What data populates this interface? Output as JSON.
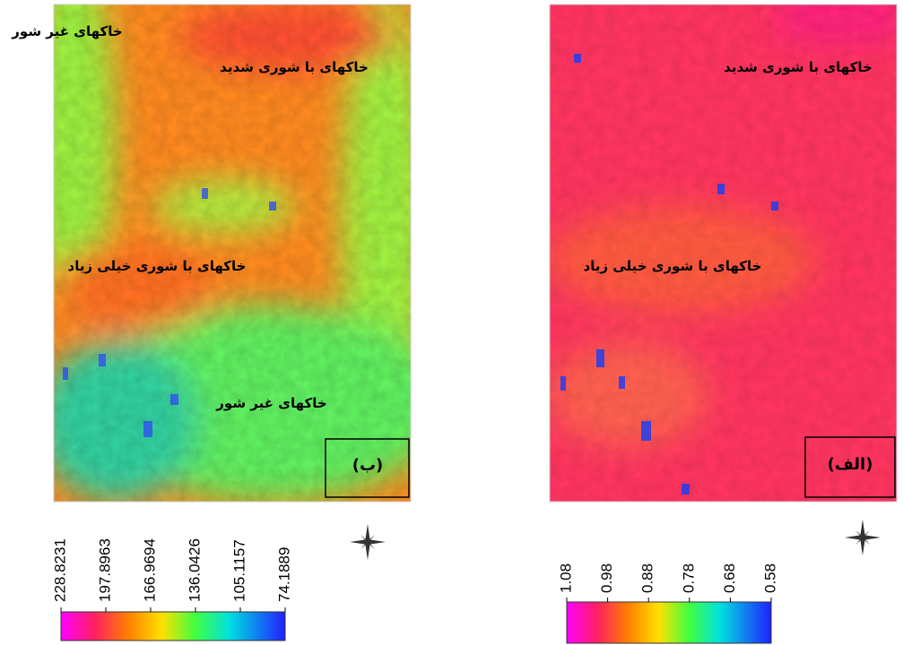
{
  "panels": [
    {
      "label": "(ب)",
      "annotations": [
        "خاکهای غیر شور",
        "خاکهای با شوری شدید",
        "خاکهای با شوری خیلی زیاد",
        "خاکهای غیر شور"
      ],
      "legend": {
        "ticks": [
          228.8231,
          197.8963,
          166.9694,
          136.0426,
          105.1157,
          74.1889
        ]
      }
    },
    {
      "label": "(الف)",
      "annotations": [
        "خاکهای با شوری شدید",
        "خاکهای با شوری خیلی زیاد"
      ],
      "legend": {
        "ticks": [
          1.08,
          0.98,
          0.88,
          0.78,
          0.68,
          0.58
        ]
      }
    }
  ]
}
